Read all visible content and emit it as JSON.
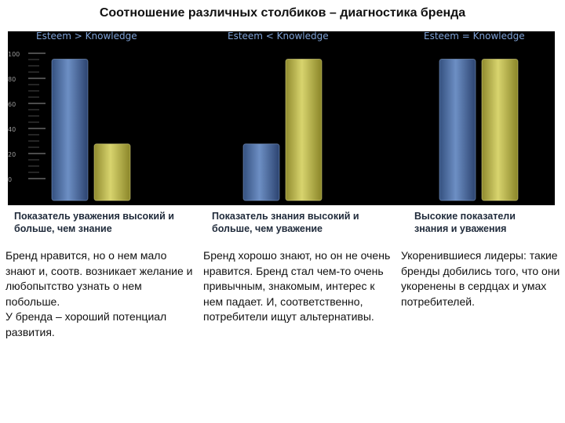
{
  "title": "Соотношение различных столбиков – диагностика бренда",
  "chart_data": {
    "type": "bar",
    "yaxis": {
      "ticks": [
        "100",
        "80",
        "60",
        "40",
        "20",
        "0"
      ],
      "ylim": [
        0,
        100
      ]
    },
    "colors": {
      "esteem": "#4f6fa3",
      "knowledge": "#c7c25a",
      "panel_bg": "#000000",
      "header_text": "#7fa2d6"
    },
    "panels": [
      {
        "header": "Esteem > Knowledge",
        "values": [
          95,
          38
        ]
      },
      {
        "header": "Esteem < Knowledge",
        "values": [
          38,
          95
        ]
      },
      {
        "header": "Esteem = Knowledge",
        "values": [
          95,
          95
        ]
      }
    ]
  },
  "captions": [
    "Показатель уважения высокий и больше, чем знание",
    "Показатель знания высокий и больше, чем уважение",
    "Высокие показатели знания и уважения"
  ],
  "descriptions": [
    "Бренд нравится, но о нем мало знают и, соотв. возникает желание и любопытство узнать о нем побольше.\nУ бренда – хороший потенциал развития.",
    "Бренд хорошо знают, но он не очень нравится. Бренд стал чем-то очень привычным, знакомым, интерес к нем падает. И, соответственно, потребители ищут альтернативы.",
    "Укоренившиеся лидеры: такие бренды добились того, что они укоренены в сердцах и умах потребителей."
  ]
}
